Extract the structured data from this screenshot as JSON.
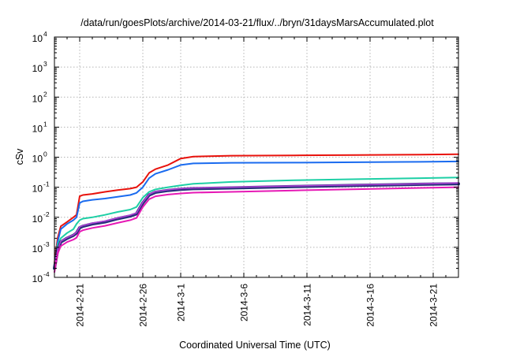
{
  "chart_data": {
    "type": "line",
    "title": "/data/run/goesPlots/archive/2014-03-21/flux/../bryn/31daysMarsAccumulated.plot",
    "xlabel": "Coordinated Universal Time (UTC)",
    "ylabel": "cSv",
    "y_scale": "log",
    "ylim": [
      0.0001,
      10000
    ],
    "xlim": [
      "2014-02-19",
      "2014-03-23"
    ],
    "x_ticks": [
      "2014-2-21",
      "2014-2-26",
      "2014-3-1",
      "2014-3-6",
      "2014-3-11",
      "2014-3-16",
      "2014-3-21"
    ],
    "x_tick_dates": [
      "2014-02-21",
      "2014-02-26",
      "2014-03-01",
      "2014-03-06",
      "2014-03-11",
      "2014-03-16",
      "2014-03-21"
    ],
    "y_ticks": [
      {
        "value": 0.0001,
        "base": "10",
        "exp": "-4"
      },
      {
        "value": 0.001,
        "base": "10",
        "exp": "-3"
      },
      {
        "value": 0.01,
        "base": "10",
        "exp": "-2"
      },
      {
        "value": 0.1,
        "base": "10",
        "exp": "-1"
      },
      {
        "value": 1,
        "base": "10",
        "exp": "0"
      },
      {
        "value": 10,
        "base": "10",
        "exp": "1"
      },
      {
        "value": 100,
        "base": "10",
        "exp": "2"
      },
      {
        "value": 1000,
        "base": "10",
        "exp": "3"
      },
      {
        "value": 10000,
        "base": "10",
        "exp": "4"
      }
    ],
    "grid": true,
    "series": [
      {
        "color": "#e8120c",
        "width": 2,
        "x": [
          "2014-02-19",
          "2014-02-19 06:00",
          "2014-02-19 12:00",
          "2014-02-20",
          "2014-02-20 12:00",
          "2014-02-20 18:00",
          "2014-02-21",
          "2014-02-21 06:00",
          "2014-02-22",
          "2014-02-23",
          "2014-02-24",
          "2014-02-25",
          "2014-02-25 12:00",
          "2014-02-26",
          "2014-02-26 12:00",
          "2014-02-27",
          "2014-02-28",
          "2014-03-01",
          "2014-03-02",
          "2014-03-05",
          "2014-03-10",
          "2014-03-15",
          "2014-03-20",
          "2014-03-23"
        ],
        "y": [
          0.0003,
          0.002,
          0.005,
          0.007,
          0.01,
          0.012,
          0.05,
          0.055,
          0.06,
          0.07,
          0.08,
          0.09,
          0.1,
          0.15,
          0.3,
          0.4,
          0.55,
          0.9,
          1.05,
          1.12,
          1.15,
          1.18,
          1.22,
          1.25
        ]
      },
      {
        "color": "#1a6bef",
        "width": 2,
        "x": [
          "2014-02-19",
          "2014-02-19 06:00",
          "2014-02-19 12:00",
          "2014-02-20",
          "2014-02-20 12:00",
          "2014-02-20 18:00",
          "2014-02-21",
          "2014-02-21 06:00",
          "2014-02-22",
          "2014-02-23",
          "2014-02-24",
          "2014-02-25",
          "2014-02-25 12:00",
          "2014-02-26",
          "2014-02-26 12:00",
          "2014-02-27",
          "2014-02-28",
          "2014-03-01",
          "2014-03-02",
          "2014-03-05",
          "2014-03-10",
          "2014-03-15",
          "2014-03-20",
          "2014-03-23"
        ],
        "y": [
          0.0002,
          0.0015,
          0.004,
          0.006,
          0.008,
          0.01,
          0.03,
          0.034,
          0.038,
          0.042,
          0.048,
          0.055,
          0.065,
          0.1,
          0.2,
          0.28,
          0.38,
          0.55,
          0.62,
          0.65,
          0.66,
          0.68,
          0.7,
          0.72
        ]
      },
      {
        "color": "#1dcfa5",
        "width": 2,
        "x": [
          "2014-02-19",
          "2014-02-19 06:00",
          "2014-02-19 12:00",
          "2014-02-20",
          "2014-02-20 12:00",
          "2014-02-20 18:00",
          "2014-02-21",
          "2014-02-21 06:00",
          "2014-02-22",
          "2014-02-23",
          "2014-02-24",
          "2014-02-25",
          "2014-02-25 12:00",
          "2014-02-26",
          "2014-02-26 12:00",
          "2014-02-27",
          "2014-02-28",
          "2014-03-01",
          "2014-03-02",
          "2014-03-05",
          "2014-03-10",
          "2014-03-15",
          "2014-03-20",
          "2014-03-23"
        ],
        "y": [
          0.0002,
          0.0012,
          0.002,
          0.003,
          0.004,
          0.006,
          0.008,
          0.009,
          0.01,
          0.012,
          0.015,
          0.018,
          0.022,
          0.045,
          0.07,
          0.085,
          0.1,
          0.115,
          0.13,
          0.15,
          0.17,
          0.185,
          0.2,
          0.21
        ]
      },
      {
        "color": "#2a2f7d",
        "width": 4,
        "x": [
          "2014-02-19",
          "2014-02-19 06:00",
          "2014-02-19 12:00",
          "2014-02-20",
          "2014-02-20 12:00",
          "2014-02-20 18:00",
          "2014-02-21",
          "2014-02-21 06:00",
          "2014-02-22",
          "2014-02-23",
          "2014-02-24",
          "2014-02-25",
          "2014-02-25 12:00",
          "2014-02-26",
          "2014-02-26 12:00",
          "2014-02-27",
          "2014-02-28",
          "2014-03-01",
          "2014-03-02",
          "2014-03-05",
          "2014-03-10",
          "2014-03-15",
          "2014-03-20",
          "2014-03-23"
        ],
        "y": [
          0.0002,
          0.0008,
          0.0015,
          0.002,
          0.0025,
          0.003,
          0.0045,
          0.005,
          0.006,
          0.007,
          0.009,
          0.011,
          0.013,
          0.03,
          0.055,
          0.068,
          0.078,
          0.085,
          0.09,
          0.095,
          0.105,
          0.115,
          0.125,
          0.13
        ]
      },
      {
        "color": "#b540d8",
        "width": 1.5,
        "x": [
          "2014-02-19",
          "2014-02-19 06:00",
          "2014-02-19 12:00",
          "2014-02-20",
          "2014-02-20 12:00",
          "2014-02-20 18:00",
          "2014-02-21",
          "2014-02-21 06:00",
          "2014-02-22",
          "2014-02-23",
          "2014-02-24",
          "2014-02-25",
          "2014-02-25 12:00",
          "2014-02-26",
          "2014-02-26 12:00",
          "2014-02-27",
          "2014-02-28",
          "2014-03-01",
          "2014-03-02",
          "2014-03-05",
          "2014-03-10",
          "2014-03-15",
          "2014-03-20",
          "2014-03-23"
        ],
        "y": [
          0.00025,
          0.00085,
          0.0016,
          0.0021,
          0.0026,
          0.0032,
          0.0048,
          0.0053,
          0.0064,
          0.0075,
          0.0095,
          0.0118,
          0.014,
          0.032,
          0.058,
          0.072,
          0.082,
          0.09,
          0.095,
          0.1,
          0.11,
          0.12,
          0.13,
          0.14
        ]
      },
      {
        "color": "#e619b5",
        "width": 2,
        "x": [
          "2014-02-19",
          "2014-02-19 06:00",
          "2014-02-19 12:00",
          "2014-02-20",
          "2014-02-20 12:00",
          "2014-02-20 18:00",
          "2014-02-21",
          "2014-02-21 06:00",
          "2014-02-22",
          "2014-02-23",
          "2014-02-24",
          "2014-02-25",
          "2014-02-25 12:00",
          "2014-02-26",
          "2014-02-26 12:00",
          "2014-02-27",
          "2014-02-28",
          "2014-03-01",
          "2014-03-02",
          "2014-03-05",
          "2014-03-10",
          "2014-03-15",
          "2014-03-20",
          "2014-03-23"
        ],
        "y": [
          0.00015,
          0.0006,
          0.0011,
          0.0015,
          0.0018,
          0.0021,
          0.0033,
          0.0037,
          0.0044,
          0.0052,
          0.0065,
          0.008,
          0.0095,
          0.022,
          0.04,
          0.05,
          0.057,
          0.062,
          0.066,
          0.07,
          0.078,
          0.086,
          0.095,
          0.1
        ]
      }
    ]
  }
}
